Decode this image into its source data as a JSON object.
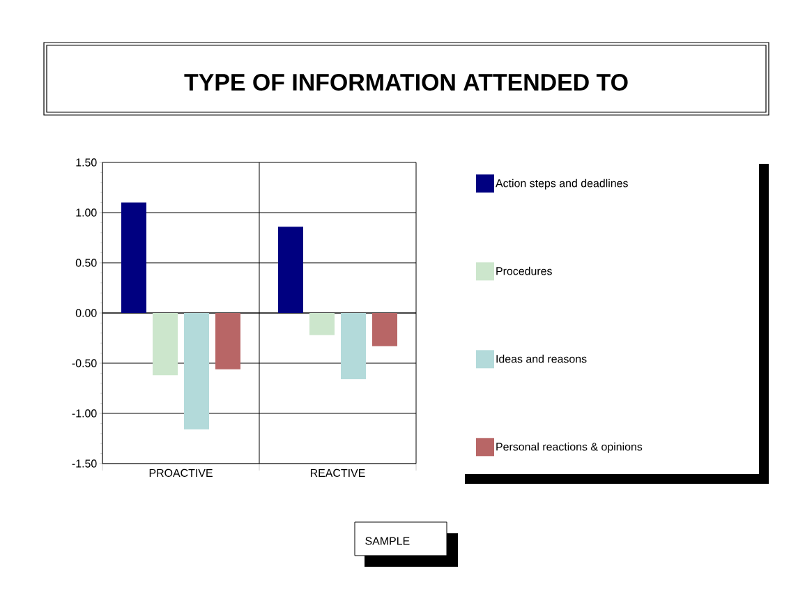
{
  "chart_data": {
    "type": "bar",
    "title": "TYPE OF INFORMATION ATTENDED TO",
    "categories": [
      "PROACTIVE",
      "REACTIVE"
    ],
    "series": [
      {
        "name": "Action steps and deadlines",
        "color": "#000080",
        "values": [
          1.1,
          0.86
        ]
      },
      {
        "name": "Procedures",
        "color": "#cce6cc",
        "values": [
          -0.62,
          -0.22
        ]
      },
      {
        "name": "Ideas and reasons",
        "color": "#b3dada",
        "values": [
          -1.16,
          -0.66
        ]
      },
      {
        "name": "Personal reactions & opinions",
        "color": "#b86666",
        "values": [
          -0.56,
          -0.33
        ]
      }
    ],
    "ylim": [
      -1.5,
      1.5
    ],
    "yticks": [
      {
        "value": -1.5,
        "label": "-1.50"
      },
      {
        "value": -1.0,
        "label": "-1.00"
      },
      {
        "value": -0.5,
        "label": "-0.50"
      },
      {
        "value": 0,
        "label": "0.00"
      },
      {
        "value": 0.5,
        "label": "0.50"
      },
      {
        "value": 1.0,
        "label": "1.00"
      },
      {
        "value": 1.5,
        "label": "1.50"
      }
    ],
    "grid": "y",
    "legend": "right",
    "annotations": [
      "SAMPLE"
    ]
  }
}
